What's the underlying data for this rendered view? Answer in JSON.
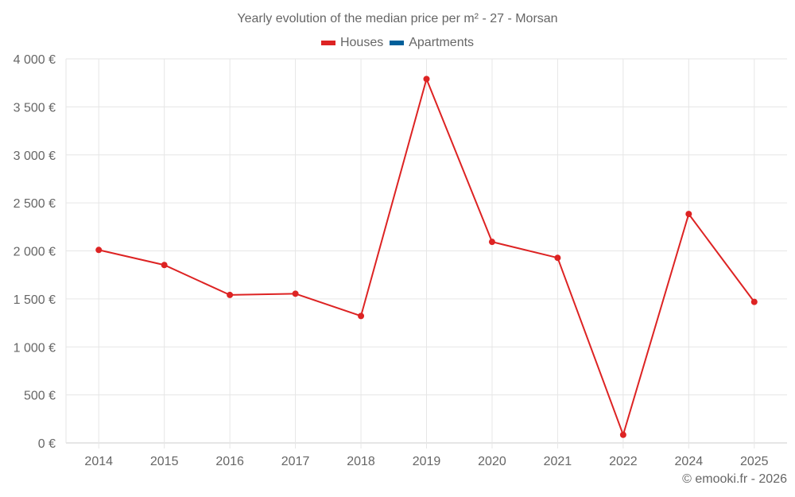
{
  "chart_data": {
    "type": "line",
    "title": "Yearly evolution of the median price per m² - 27 - Morsan",
    "categories": [
      "2014",
      "2015",
      "2016",
      "2017",
      "2018",
      "2019",
      "2020",
      "2021",
      "2022",
      "2024",
      "2025"
    ],
    "series": [
      {
        "name": "Houses",
        "color": "#dd2323",
        "values": [
          2010,
          1853,
          1541,
          1554,
          1322,
          3790,
          2094,
          1928,
          85,
          2384,
          1469
        ]
      },
      {
        "name": "Apartments",
        "color": "#005f9a",
        "values": []
      }
    ],
    "xlabel": "",
    "ylabel": "",
    "ylim": [
      0,
      4000
    ],
    "yticks": [
      0,
      500,
      1000,
      1500,
      2000,
      2500,
      3000,
      3500,
      4000
    ],
    "ytick_labels": [
      "0 €",
      "500 €",
      "1 000 €",
      "1 500 €",
      "2 000 €",
      "2 500 €",
      "3 000 €",
      "3 500 €",
      "4 000 €"
    ],
    "grid": true,
    "legend_position": "top"
  },
  "legend": {
    "houses": "Houses",
    "apartments": "Apartments",
    "houses_color": "#dd2323",
    "apartments_color": "#005f9a"
  },
  "credit": "© emooki.fr - 2026"
}
